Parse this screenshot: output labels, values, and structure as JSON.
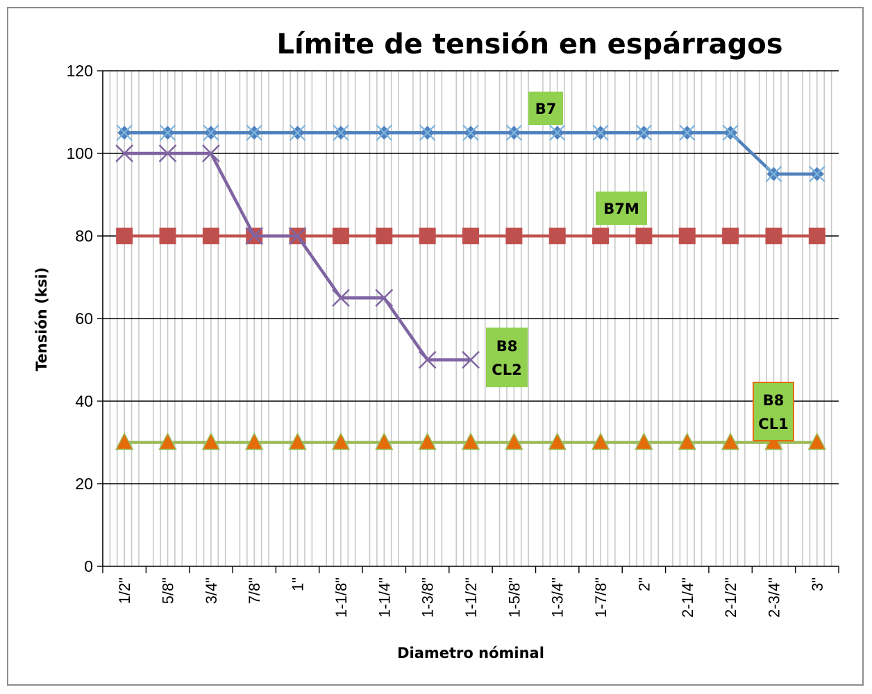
{
  "chart_data": {
    "type": "line",
    "title": "Límite de tensión en espárragos",
    "xlabel": "Diametro nóminal",
    "ylabel": "Tensión (ksi)",
    "ylim": [
      0,
      120
    ],
    "yticks": [
      "0",
      "20",
      "40",
      "60",
      "80",
      "100",
      "120"
    ],
    "grid": "horizontal major lines and dense vertical minor lines",
    "categories": [
      "1/2\"",
      "5/8\"",
      "3/4\"",
      "7/8\"",
      "1\"",
      "1-1/8\"",
      "1-1/4\"",
      "1-3/8\"",
      "1-1/2\"",
      "1-5/8\"",
      "1-3/4\"",
      "1-7/8\"",
      "2\"",
      "2-1/4\"",
      "2-1/2\"",
      "2-3/4\"",
      "3\""
    ],
    "series": [
      {
        "label": "B7",
        "color": "#4f81bd",
        "marker": "diamond",
        "values": [
          105,
          105,
          105,
          105,
          105,
          105,
          105,
          105,
          105,
          105,
          105,
          105,
          105,
          105,
          105,
          95,
          95
        ]
      },
      {
        "label": "B7M",
        "color": "#c0504d",
        "marker": "square",
        "values": [
          80,
          80,
          80,
          80,
          80,
          80,
          80,
          80,
          80,
          80,
          80,
          80,
          80,
          80,
          80,
          80,
          80
        ]
      },
      {
        "label": "B8 CL2",
        "color": "#8064a2",
        "marker": "x",
        "values": [
          100,
          100,
          100,
          80,
          80,
          65,
          65,
          50,
          50,
          null,
          null,
          null,
          null,
          null,
          null,
          null,
          null
        ]
      },
      {
        "label": "B8 CL1",
        "color": "#9bbb59",
        "marker": "triangle",
        "values": [
          30,
          30,
          30,
          30,
          30,
          30,
          30,
          30,
          30,
          30,
          30,
          30,
          30,
          30,
          30,
          30,
          30
        ]
      }
    ],
    "annotations": [
      {
        "lines": [
          "B7"
        ],
        "series": "B7",
        "bg": "#92d050",
        "border": "#92d050"
      },
      {
        "lines": [
          "B7M"
        ],
        "series": "B7M",
        "bg": "#92d050",
        "border": "#92d050"
      },
      {
        "lines": [
          "B8",
          "CL2"
        ],
        "series": "B8 CL2",
        "bg": "#92d050",
        "border": "#92d050"
      },
      {
        "lines": [
          "B8",
          "CL1"
        ],
        "series": "B8 CL1",
        "bg": "#92d050",
        "border": "#e46c0a"
      }
    ]
  }
}
